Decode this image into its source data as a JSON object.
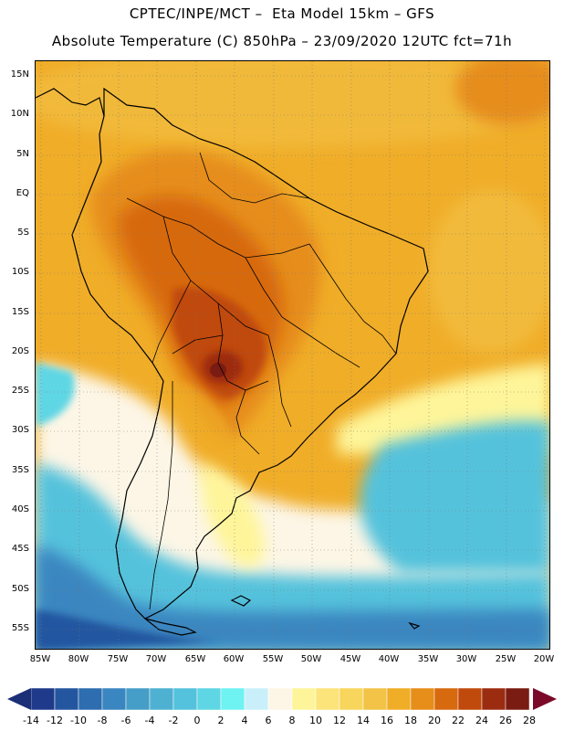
{
  "title_line1": "CPTEC/INPE/MCT –  Eta Model 15km – GFS",
  "title_line2": "Absolute Temperature (C) 850hPa – 23/09/2020 12UTC fct=71h",
  "lat_labels": [
    "15N",
    "10N",
    "5N",
    "EQ",
    "5S",
    "10S",
    "15S",
    "20S",
    "25S",
    "30S",
    "35S",
    "40S",
    "45S",
    "50S",
    "55S"
  ],
  "lon_labels": [
    "85W",
    "80W",
    "75W",
    "70W",
    "65W",
    "60W",
    "55W",
    "50W",
    "45W",
    "40W",
    "35W",
    "30W",
    "25W",
    "20W"
  ],
  "colorbar": {
    "labels": [
      "-14",
      "-12",
      "-10",
      "-8",
      "-6",
      "-4",
      "-2",
      "0",
      "2",
      "4",
      "6",
      "8",
      "10",
      "12",
      "14",
      "16",
      "18",
      "20",
      "22",
      "24",
      "26",
      "28"
    ],
    "colors": [
      "#1f3a8a",
      "#2456a0",
      "#2d6db0",
      "#3a86c0",
      "#459ec8",
      "#4fb1d1",
      "#54c2dc",
      "#5fd6e4",
      "#6ff2f2",
      "#c9f0fa",
      "#fdf6e6",
      "#fef59a",
      "#fce47a",
      "#f8d55c",
      "#f3c348",
      "#f0ad28",
      "#e68d1a",
      "#d7690e",
      "#c0490c",
      "#9c2c10",
      "#7a1c12"
    ],
    "low_arrow_color": "#1b2f77",
    "high_arrow_color": "#7a0a28"
  }
}
